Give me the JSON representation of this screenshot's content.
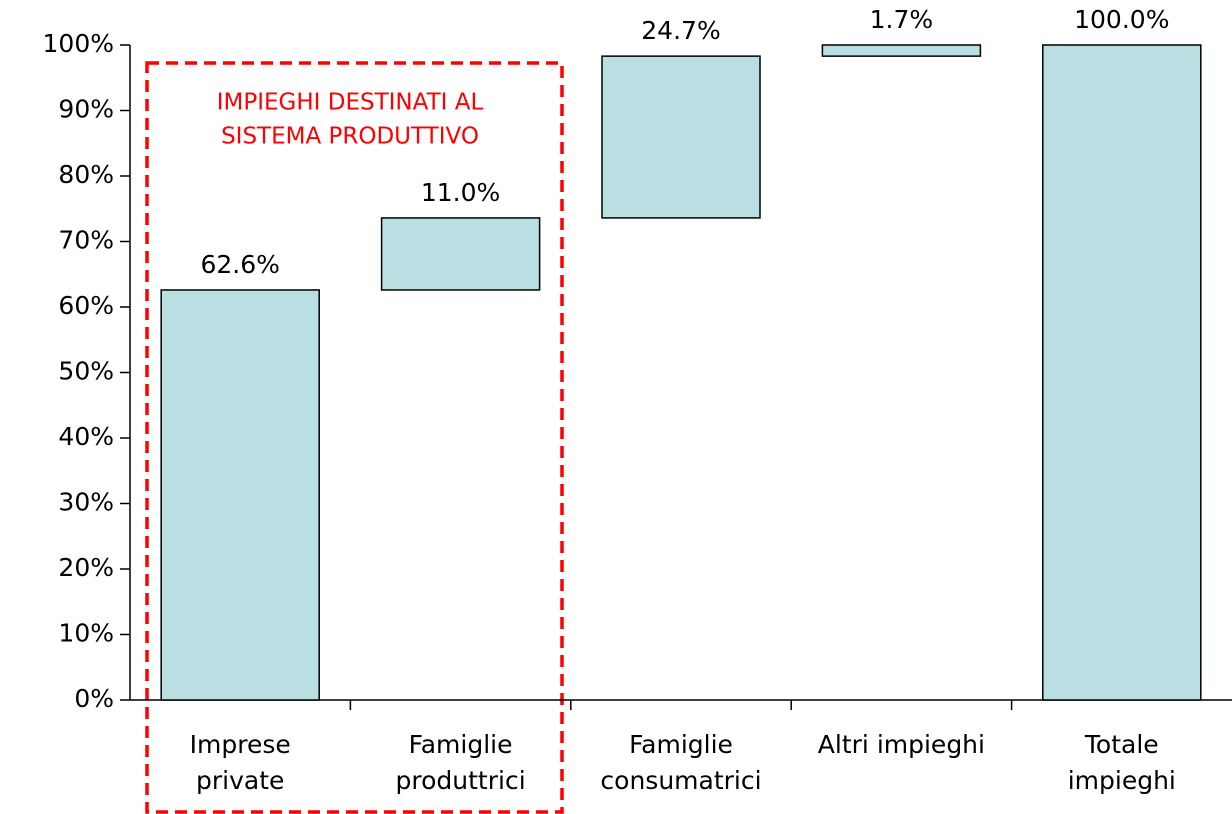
{
  "chart_data": {
    "type": "waterfall",
    "categories": [
      [
        "Imprese",
        "private"
      ],
      [
        "Famiglie",
        "produttrici"
      ],
      [
        "Famiglie",
        "consumatrici"
      ],
      [
        "Altri impieghi"
      ],
      [
        "Totale",
        "impieghi"
      ]
    ],
    "values": [
      62.6,
      11.0,
      24.7,
      1.7,
      100.0
    ],
    "value_labels": [
      "62.6%",
      "11.0%",
      "24.7%",
      "1.7%",
      "100.0%"
    ],
    "last_is_total": true,
    "color": "#b9dfe3",
    "ylim": [
      0,
      100
    ],
    "yticks": [
      {
        "value": 0,
        "label": "0%"
      },
      {
        "value": 10,
        "label": "10%"
      },
      {
        "value": 20,
        "label": "20%"
      },
      {
        "value": 30,
        "label": "30%"
      },
      {
        "value": 40,
        "label": "40%"
      },
      {
        "value": 50,
        "label": "50%"
      },
      {
        "value": 60,
        "label": "60%"
      },
      {
        "value": 70,
        "label": "70%"
      },
      {
        "value": 80,
        "label": "80%"
      },
      {
        "value": 90,
        "label": "90%"
      },
      {
        "value": 100,
        "label": "100%"
      }
    ],
    "annotation": {
      "lines": [
        "IMPIEGHI DESTINATI AL",
        "SISTEMA PRODUTTIVO"
      ],
      "color": "#ff0000"
    }
  }
}
